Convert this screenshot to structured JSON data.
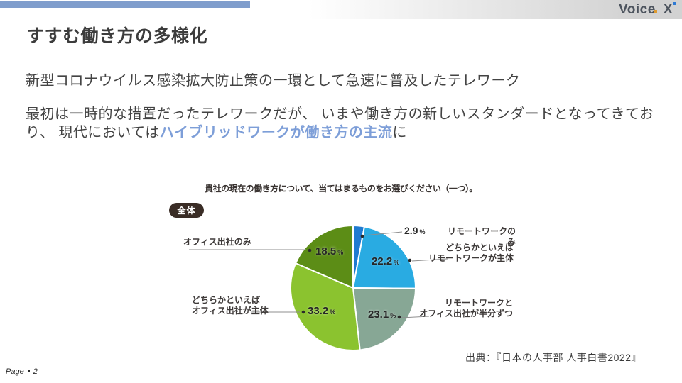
{
  "slide": {
    "title": "すすむ働き方の多様化",
    "page_label": "Page",
    "page_number": "2"
  },
  "header": {
    "logo_word": "Voice",
    "logo_x": "X"
  },
  "body": {
    "lead": "新型コロナウイルス感染拡大防止策の一環として急速に普及したテレワーク",
    "line1": "最初は一時的な措置だったテレワークだが、",
    "line2": "いまや働き方の新しいスタンダードとなってきており、",
    "line3_prefix": "現代においては",
    "line3_highlight": "ハイブリッドワークが働き方の主流",
    "line3_suffix": "に"
  },
  "chart": {
    "question": "貴社の現在の働き方について、当てはまるものをお選びください（一つ）。",
    "badge": "全体",
    "unit": "%",
    "labels": {
      "remote_only": [
        "リモートワークのみ"
      ],
      "remote_main": [
        "どちらかといえば",
        "リモートワークが主体"
      ],
      "half_half": [
        "リモートワークと",
        "オフィス出社が半分ずつ"
      ],
      "office_main": [
        "どちらかといえば",
        "オフィス出社が主体"
      ],
      "office_only": [
        "オフィス出社のみ"
      ]
    },
    "source": "出典：『日本の人事部 人事白書2022』"
  },
  "chart_data": {
    "type": "pie",
    "title": "貴社の現在の働き方について、当てはまるものをお選びください（一つ）。",
    "group": "全体",
    "unit": "%",
    "start_angle_deg": 0,
    "direction": "clockwise-from-top",
    "slices": [
      {
        "label": "リモートワークのみ",
        "value": 2.9,
        "color": "#1f7ad0"
      },
      {
        "label": "どちらかといえばリモートワークが主体",
        "value": 22.2,
        "color": "#29abe2"
      },
      {
        "label": "リモートワークとオフィス出社が半分ずつ",
        "value": 23.1,
        "color": "#87a795"
      },
      {
        "label": "どちらかといえばオフィス出社が主体",
        "value": 33.2,
        "color": "#8bc32f"
      },
      {
        "label": "オフィス出社のみ",
        "value": 18.5,
        "color": "#5c8d16"
      }
    ],
    "source": "『日本の人事部 人事白書2022』"
  },
  "theme": {
    "top_bar_color": "#7f9dcc",
    "highlight_blue": "#7d9ed8",
    "logo_dot_blue": "#2e7ad4",
    "logo_dot_orange": "#df9a2e",
    "badge_bg": "#3a2d26"
  }
}
